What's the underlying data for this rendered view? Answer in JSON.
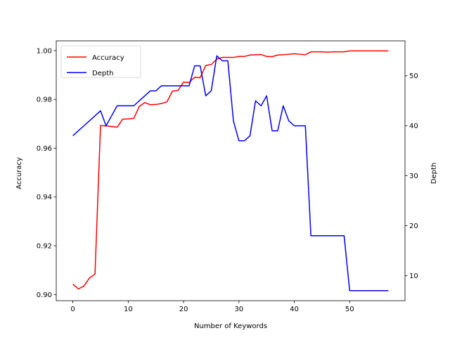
{
  "chart_data": {
    "type": "line",
    "title": "",
    "xlabel": "Number of Keywords",
    "ylabel": "Accuracy",
    "y2label": "Depth",
    "xlim": [
      -3,
      60
    ],
    "ylim": [
      0.8975,
      1.004
    ],
    "y2lim": [
      5,
      57
    ],
    "xticks": [
      "0",
      "10",
      "20",
      "30",
      "40",
      "50"
    ],
    "xtick_values": [
      0,
      10,
      20,
      30,
      40,
      50
    ],
    "yticks": [
      "0.90",
      "0.92",
      "0.94",
      "0.96",
      "0.98",
      "1.00"
    ],
    "ytick_values": [
      0.9,
      0.92,
      0.94,
      0.96,
      0.98,
      1.0
    ],
    "y2ticks": [
      "10",
      "20",
      "30",
      "40",
      "50"
    ],
    "y2tick_values": [
      10,
      20,
      30,
      40,
      50
    ],
    "grid": false,
    "legend_position": "top-left",
    "x": [
      0,
      1,
      2,
      3,
      4,
      5,
      6,
      7,
      8,
      9,
      10,
      11,
      12,
      13,
      14,
      15,
      16,
      17,
      18,
      19,
      20,
      21,
      22,
      23,
      24,
      25,
      26,
      27,
      28,
      29,
      30,
      31,
      32,
      33,
      34,
      35,
      36,
      37,
      38,
      39,
      40,
      41,
      42,
      43,
      44,
      45,
      46,
      47,
      48,
      49,
      50,
      51,
      52,
      53,
      54,
      55,
      56,
      57
    ],
    "series": [
      {
        "name": "Accuracy",
        "axis": "left",
        "color": "#ff0000",
        "values": [
          0.9043,
          0.9023,
          0.9035,
          0.9068,
          0.9084,
          0.9693,
          0.9691,
          0.9689,
          0.9686,
          0.9719,
          0.972,
          0.9722,
          0.9771,
          0.9787,
          0.9778,
          0.9779,
          0.9783,
          0.979,
          0.9834,
          0.9837,
          0.9871,
          0.9869,
          0.9891,
          0.9889,
          0.9939,
          0.9943,
          0.9965,
          0.9972,
          0.9972,
          0.9972,
          0.9976,
          0.9976,
          0.9982,
          0.9983,
          0.9984,
          0.9976,
          0.9975,
          0.9982,
          0.9983,
          0.9985,
          0.9987,
          0.9985,
          0.9983,
          0.9995,
          0.9995,
          0.9995,
          0.9994,
          0.9995,
          0.9995,
          0.9995,
          0.9999,
          0.9999,
          0.9999,
          0.9999,
          0.9999,
          0.9999,
          0.9999,
          0.9999
        ]
      },
      {
        "name": "Depth",
        "axis": "right",
        "color": "#0000ff",
        "values": [
          38,
          39,
          40,
          41,
          42,
          43,
          40,
          42,
          44,
          44,
          44,
          44,
          45,
          46,
          47,
          47,
          48,
          48,
          48,
          48,
          48,
          48,
          52,
          52,
          46,
          47,
          54,
          53,
          53,
          41,
          37,
          37,
          38,
          45,
          44,
          46,
          39,
          39,
          44,
          41,
          40,
          40,
          40,
          18,
          18,
          18,
          18,
          18,
          18,
          18,
          7,
          7,
          7,
          7,
          7,
          7,
          7,
          7
        ]
      }
    ]
  }
}
